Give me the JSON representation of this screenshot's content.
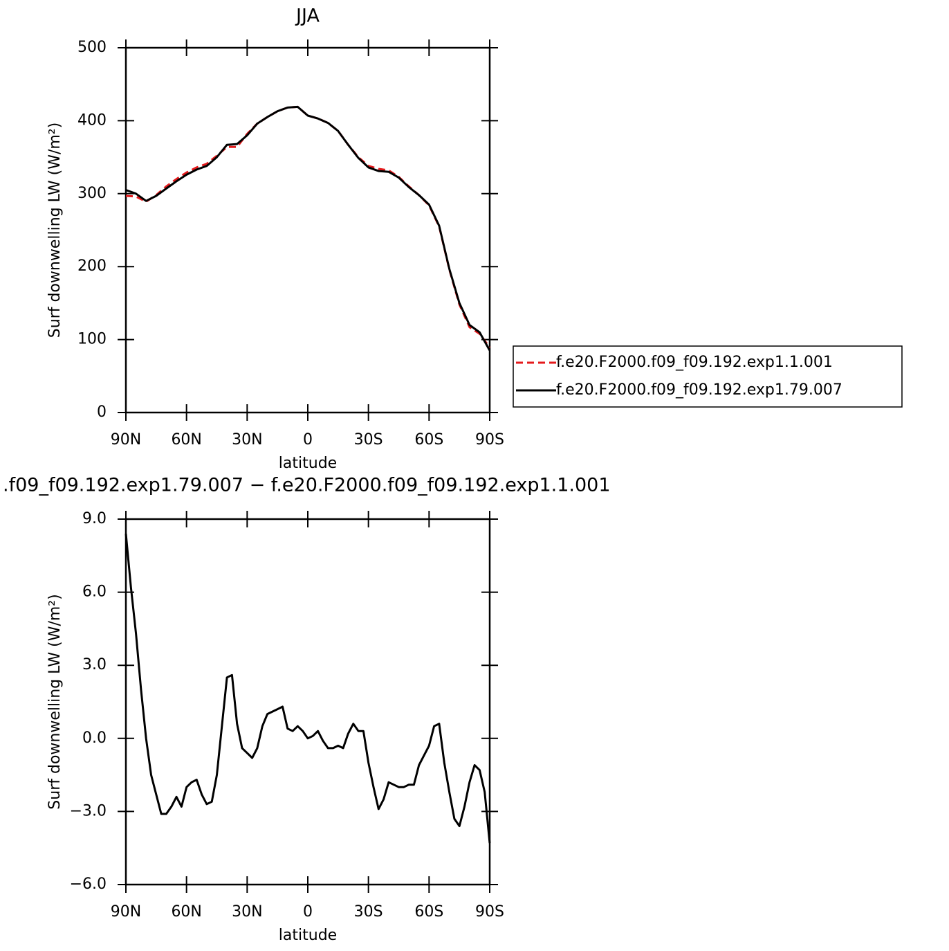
{
  "chart_data": [
    {
      "type": "line",
      "title": "JJA",
      "xlabel": "latitude",
      "ylabel": "Surf downwelling LW (W/m²)",
      "x": [
        90,
        85,
        80,
        75,
        70,
        65,
        60,
        55,
        50,
        45,
        40,
        35,
        30,
        25,
        20,
        15,
        10,
        5,
        0,
        -5,
        -10,
        -15,
        -20,
        -25,
        -30,
        -35,
        -40,
        -45,
        -50,
        -55,
        -60,
        -65,
        -70,
        -75,
        -80,
        -85,
        -90
      ],
      "series": [
        {
          "name": "f.e20.F2000.f09_f09.192.exp1.1.001",
          "color": "#e41a1c",
          "linestyle": "dashed",
          "values": [
            297,
            296,
            289,
            298,
            310,
            320,
            329,
            336,
            341,
            352,
            364,
            364,
            382,
            396,
            405,
            413,
            418,
            419,
            407,
            403,
            397,
            386,
            367,
            350,
            338,
            334,
            332,
            323,
            310,
            298,
            284,
            255,
            196,
            148,
            117,
            108,
            89
          ]
        },
        {
          "name": "f.e20.F2000.f09_f09.192.exp1.79.007",
          "color": "#000000",
          "linestyle": "solid",
          "values": [
            305,
            300,
            290,
            297,
            307,
            317,
            326,
            333,
            338,
            350,
            367,
            368,
            380,
            396,
            405,
            413,
            418,
            419,
            407,
            403,
            397,
            386,
            367,
            349,
            336,
            331,
            330,
            322,
            309,
            298,
            285,
            256,
            197,
            150,
            120,
            110,
            85
          ]
        }
      ],
      "xlim": [
        90,
        -90
      ],
      "xticks": [
        {
          "value": 90,
          "label": "90N"
        },
        {
          "value": 60,
          "label": "60N"
        },
        {
          "value": 30,
          "label": "30N"
        },
        0,
        {
          "value": -30,
          "label": "30S"
        },
        {
          "value": -60,
          "label": "60S"
        },
        {
          "value": -90,
          "label": "90S"
        }
      ],
      "ylim": [
        0,
        500
      ],
      "yticks": [
        0,
        100,
        200,
        300,
        400,
        500
      ],
      "legend": "outside-right"
    },
    {
      "type": "line",
      "title": ".f09_f09.192.exp1.79.007 − f.e20.F2000.f09_f09.192.exp1.1.001",
      "xlabel": "latitude",
      "ylabel": "Surf downwelling LW (W/m²)",
      "x": [
        90,
        87.5,
        85,
        82.5,
        80,
        77.5,
        75,
        72.5,
        70,
        67.5,
        65,
        62.5,
        60,
        57.5,
        55,
        52.5,
        50,
        47.5,
        45,
        42.5,
        40,
        37.5,
        35,
        32.5,
        30,
        27.5,
        25,
        22.5,
        20,
        17.5,
        15,
        12.5,
        10,
        7.5,
        5,
        2.5,
        0,
        -2.5,
        -5,
        -7.5,
        -10,
        -12.5,
        -15,
        -17.5,
        -20,
        -22.5,
        -25,
        -27.5,
        -30,
        -32.5,
        -35,
        -37.5,
        -40,
        -42.5,
        -45,
        -47.5,
        -50,
        -52.5,
        -55,
        -57.5,
        -60,
        -62.5,
        -65,
        -67.5,
        -70,
        -72.5,
        -75,
        -77.5,
        -80,
        -82.5,
        -85,
        -87.5,
        -90
      ],
      "values": [
        8.4,
        6.2,
        4.3,
        2.0,
        0.0,
        -1.5,
        -2.3,
        -3.1,
        -3.1,
        -2.8,
        -2.4,
        -2.8,
        -2.0,
        -1.8,
        -1.7,
        -2.3,
        -2.7,
        -2.6,
        -1.5,
        0.5,
        2.5,
        2.6,
        0.6,
        -0.4,
        -0.6,
        -0.8,
        -0.4,
        0.5,
        1.0,
        1.1,
        1.2,
        1.3,
        0.4,
        0.3,
        0.5,
        0.3,
        0.0,
        0.1,
        0.3,
        -0.1,
        -0.4,
        -0.4,
        -0.3,
        -0.4,
        0.2,
        0.6,
        0.3,
        0.3,
        -1.0,
        -2.0,
        -2.9,
        -2.5,
        -1.8,
        -1.9,
        -2.0,
        -2.0,
        -1.9,
        -1.9,
        -1.1,
        -0.7,
        -0.3,
        0.5,
        0.6,
        -1.0,
        -2.2,
        -3.3,
        -3.6,
        -2.8,
        -1.8,
        -1.1,
        -1.3,
        -2.2,
        -4.3
      ],
      "color": "#000000",
      "xlim": [
        90,
        -90
      ],
      "xticks": [
        {
          "value": 90,
          "label": "90N"
        },
        {
          "value": 60,
          "label": "60N"
        },
        {
          "value": 30,
          "label": "30N"
        },
        0,
        {
          "value": -30,
          "label": "30S"
        },
        {
          "value": -60,
          "label": "60S"
        },
        {
          "value": -90,
          "label": "90S"
        }
      ],
      "ylim": [
        -6,
        9
      ],
      "yticks": [
        {
          "value": -6,
          "label": "−6.0"
        },
        {
          "value": -3,
          "label": "−3.0"
        },
        {
          "value": 0,
          "label": "0.0"
        },
        {
          "value": 3,
          "label": "3.0"
        },
        {
          "value": 6,
          "label": "6.0"
        },
        {
          "value": 9,
          "label": "9.0"
        }
      ]
    }
  ]
}
